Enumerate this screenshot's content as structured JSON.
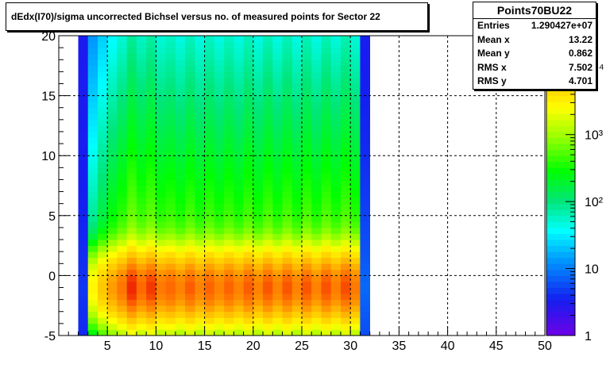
{
  "chart_data": {
    "type": "heatmap",
    "title": "dEdx(I70)/sigma uncorrected Bichsel versus no. of measured points for Sector 22",
    "xlabel": "",
    "ylabel": "",
    "xlim": [
      0,
      50
    ],
    "ylim": [
      -5,
      20
    ],
    "x_ticks": [
      "5",
      "10",
      "15",
      "20",
      "25",
      "30",
      "35",
      "40",
      "45",
      "50"
    ],
    "y_ticks": [
      "-5",
      "0",
      "5",
      "10",
      "15",
      "20"
    ],
    "z_scale": "log",
    "z_range": [
      1,
      30000
    ],
    "z_ticks": [
      "1",
      "10",
      "10²",
      "10³",
      "10⁴"
    ],
    "grid": true,
    "x_bins": [
      2,
      3,
      4,
      5,
      6,
      7,
      8,
      9,
      10,
      11,
      12,
      13,
      14,
      15,
      16,
      17,
      18,
      19,
      20,
      21,
      22,
      23,
      24,
      25,
      26,
      27,
      28,
      29,
      30,
      31
    ],
    "x_bin_weights": [
      0.06,
      0.12,
      0.25,
      0.42,
      0.62,
      1.0,
      0.7,
      0.92,
      0.6,
      0.7,
      0.55,
      0.75,
      0.55,
      0.72,
      0.55,
      0.72,
      0.55,
      0.75,
      0.55,
      0.78,
      0.55,
      0.78,
      0.55,
      0.78,
      0.55,
      0.8,
      0.58,
      0.82,
      0.6,
      0.2
    ],
    "peak_y": -1,
    "counts_note": "2D histogram of counts; peak near x≈7, y≈-1"
  },
  "stats": {
    "name": "Points70BU22",
    "rows": [
      {
        "label": "Entries",
        "value": "1.290427e+07"
      },
      {
        "label": "Mean x",
        "value": "13.22"
      },
      {
        "label": "Mean y",
        "value": "0.862"
      },
      {
        "label": "RMS x",
        "value": "7.502"
      },
      {
        "label": "RMS y",
        "value": "4.701"
      }
    ]
  }
}
